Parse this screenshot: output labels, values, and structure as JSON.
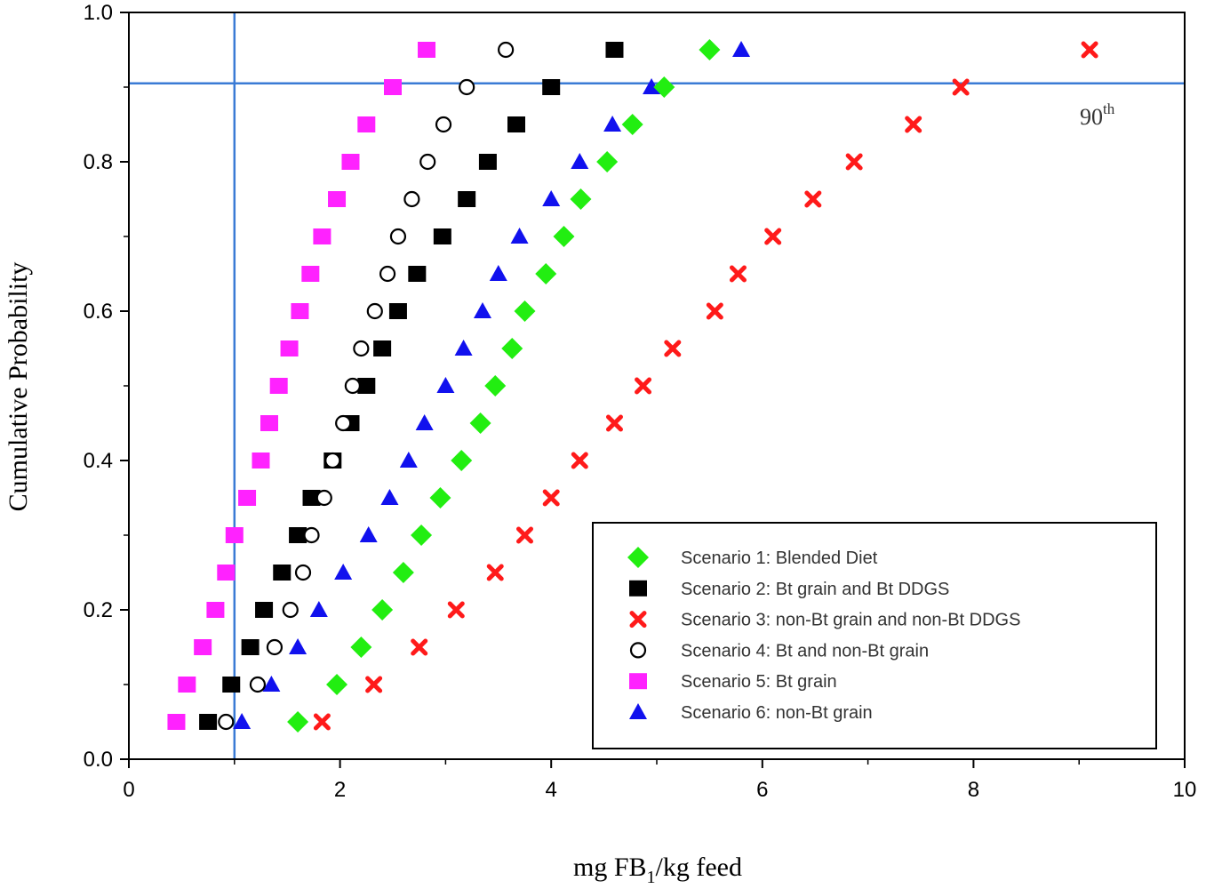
{
  "chart_data": {
    "type": "scatter",
    "xlabel": "mg FB1/kg feed",
    "xlabel_main": "mg FB",
    "xlabel_sub": "1",
    "xlabel_rest": "/kg feed",
    "ylabel": "Cumulative Probability",
    "xlim": [
      0,
      10
    ],
    "ylim": [
      0,
      1
    ],
    "xticks": [
      0,
      2,
      4,
      6,
      8,
      10
    ],
    "yticks": [
      0.0,
      0.2,
      0.4,
      0.6,
      0.8,
      1.0
    ],
    "xtick_labels": [
      "0",
      "2",
      "4",
      "6",
      "8",
      "10"
    ],
    "ytick_labels": [
      "0.0",
      "0.2",
      "0.4",
      "0.6",
      "0.8",
      "1.0"
    ],
    "reference_lines": {
      "vertical_x": 1.0,
      "horizontal_y": 0.905,
      "label": "90",
      "label_sup": "th"
    },
    "legend_position": "bottom-right",
    "probabilities": [
      0.05,
      0.1,
      0.15,
      0.2,
      0.25,
      0.3,
      0.35,
      0.4,
      0.45,
      0.5,
      0.55,
      0.6,
      0.65,
      0.7,
      0.75,
      0.8,
      0.85,
      0.9,
      0.95
    ],
    "series": [
      {
        "name": "Scenario 1: Blended Diet",
        "marker": "diamond",
        "color": "#22ee11",
        "x": [
          1.6,
          1.97,
          2.2,
          2.4,
          2.6,
          2.77,
          2.95,
          3.15,
          3.33,
          3.47,
          3.63,
          3.75,
          3.95,
          4.12,
          4.28,
          4.53,
          4.77,
          5.07,
          5.5
        ]
      },
      {
        "name": "Scenario 2: Bt grain and Bt DDGS",
        "marker": "square",
        "color": "#000000",
        "x": [
          0.75,
          0.97,
          1.15,
          1.28,
          1.45,
          1.6,
          1.73,
          1.93,
          2.1,
          2.25,
          2.4,
          2.55,
          2.73,
          2.97,
          3.2,
          3.4,
          3.67,
          4.0,
          4.6
        ]
      },
      {
        "name": "Scenario 3: non-Bt grain and non-Bt DDGS",
        "marker": "x",
        "color": "#ff1a1a",
        "x": [
          1.83,
          2.32,
          2.75,
          3.1,
          3.47,
          3.75,
          4.0,
          4.27,
          4.6,
          4.87,
          5.15,
          5.55,
          5.77,
          6.1,
          6.48,
          6.87,
          7.43,
          7.88,
          9.1
        ]
      },
      {
        "name": "Scenario 4: Bt and non-Bt grain",
        "marker": "circle",
        "color": "#000000",
        "x": [
          0.92,
          1.22,
          1.38,
          1.53,
          1.65,
          1.73,
          1.85,
          1.93,
          2.03,
          2.12,
          2.2,
          2.33,
          2.45,
          2.55,
          2.68,
          2.83,
          2.98,
          3.2,
          3.57
        ]
      },
      {
        "name": "Scenario 5: Bt grain",
        "marker": "square",
        "color": "#ff22ff",
        "x": [
          0.45,
          0.55,
          0.7,
          0.82,
          0.92,
          1.0,
          1.12,
          1.25,
          1.33,
          1.42,
          1.52,
          1.62,
          1.72,
          1.83,
          1.97,
          2.1,
          2.25,
          2.5,
          2.82
        ]
      },
      {
        "name": "Scenario 6: non-Bt grain",
        "marker": "triangle",
        "color": "#1111ee",
        "x": [
          1.07,
          1.35,
          1.6,
          1.8,
          2.03,
          2.27,
          2.47,
          2.65,
          2.8,
          3.0,
          3.17,
          3.35,
          3.5,
          3.7,
          4.0,
          4.27,
          4.58,
          4.95,
          5.8
        ]
      }
    ]
  }
}
